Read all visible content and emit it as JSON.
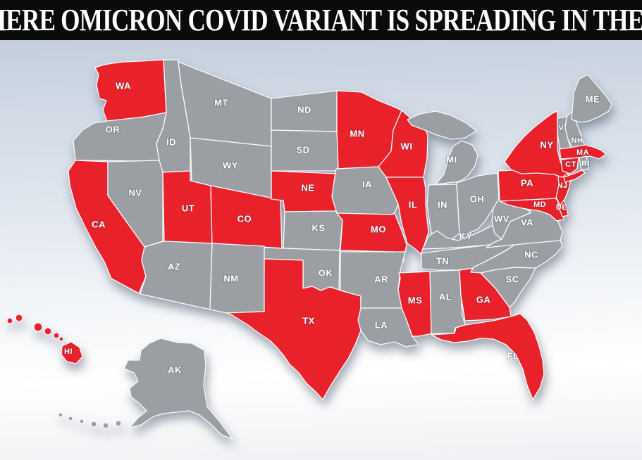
{
  "header": {
    "title": "WHERE OMICRON COVID VARIANT IS SPREADING IN THE US",
    "background": "#0b0b0c",
    "text_color": "#ffffff"
  },
  "map": {
    "colors": {
      "spreading": "#e8212a",
      "not_spreading": "#9b9ea3",
      "border": "#fafbfc",
      "label": "#ffffff"
    },
    "states": [
      {
        "id": "wa",
        "abbr": "WA",
        "spreading": true
      },
      {
        "id": "or",
        "abbr": "OR",
        "spreading": false
      },
      {
        "id": "ca",
        "abbr": "CA",
        "spreading": true
      },
      {
        "id": "nv",
        "abbr": "NV",
        "spreading": false
      },
      {
        "id": "id",
        "abbr": "ID",
        "spreading": false
      },
      {
        "id": "mt",
        "abbr": "MT",
        "spreading": false
      },
      {
        "id": "wy",
        "abbr": "WY",
        "spreading": false
      },
      {
        "id": "ut",
        "abbr": "UT",
        "spreading": true
      },
      {
        "id": "co",
        "abbr": "CO",
        "spreading": true
      },
      {
        "id": "az",
        "abbr": "AZ",
        "spreading": false
      },
      {
        "id": "nm",
        "abbr": "NM",
        "spreading": false
      },
      {
        "id": "nd",
        "abbr": "ND",
        "spreading": false
      },
      {
        "id": "sd",
        "abbr": "SD",
        "spreading": false
      },
      {
        "id": "ne",
        "abbr": "NE",
        "spreading": true
      },
      {
        "id": "ks",
        "abbr": "KS",
        "spreading": false
      },
      {
        "id": "ok",
        "abbr": "OK",
        "spreading": false
      },
      {
        "id": "tx",
        "abbr": "TX",
        "spreading": true
      },
      {
        "id": "mn",
        "abbr": "MN",
        "spreading": true
      },
      {
        "id": "ia",
        "abbr": "IA",
        "spreading": false
      },
      {
        "id": "mo",
        "abbr": "MO",
        "spreading": true
      },
      {
        "id": "ar",
        "abbr": "AR",
        "spreading": false
      },
      {
        "id": "la",
        "abbr": "LA",
        "spreading": false
      },
      {
        "id": "wi",
        "abbr": "WI",
        "spreading": true
      },
      {
        "id": "il",
        "abbr": "IL",
        "spreading": true
      },
      {
        "id": "in",
        "abbr": "IN",
        "spreading": false
      },
      {
        "id": "oh",
        "abbr": "OH",
        "spreading": false
      },
      {
        "id": "mi",
        "abbr": "MI",
        "spreading": false
      },
      {
        "id": "ky",
        "abbr": "KY",
        "spreading": false
      },
      {
        "id": "tn",
        "abbr": "TN",
        "spreading": false
      },
      {
        "id": "ms",
        "abbr": "MS",
        "spreading": true
      },
      {
        "id": "al",
        "abbr": "AL",
        "spreading": false
      },
      {
        "id": "ga",
        "abbr": "GA",
        "spreading": true
      },
      {
        "id": "fl",
        "abbr": "FL",
        "spreading": true
      },
      {
        "id": "sc",
        "abbr": "SC",
        "spreading": false
      },
      {
        "id": "nc",
        "abbr": "NC",
        "spreading": false
      },
      {
        "id": "va",
        "abbr": "VA",
        "spreading": false
      },
      {
        "id": "wv",
        "abbr": "WV",
        "spreading": false
      },
      {
        "id": "md",
        "abbr": "MD",
        "spreading": true
      },
      {
        "id": "de",
        "abbr": "DE",
        "spreading": true
      },
      {
        "id": "nj",
        "abbr": "NJ",
        "spreading": true
      },
      {
        "id": "pa",
        "abbr": "PA",
        "spreading": true
      },
      {
        "id": "ny",
        "abbr": "NY",
        "spreading": true
      },
      {
        "id": "vt",
        "abbr": "VT",
        "spreading": false
      },
      {
        "id": "nh",
        "abbr": "NH",
        "spreading": false
      },
      {
        "id": "ma",
        "abbr": "MA",
        "spreading": true
      },
      {
        "id": "ct",
        "abbr": "CT",
        "spreading": true
      },
      {
        "id": "ri",
        "abbr": "RI",
        "spreading": false
      },
      {
        "id": "me",
        "abbr": "ME",
        "spreading": false
      },
      {
        "id": "ak",
        "abbr": "AK",
        "spreading": false
      },
      {
        "id": "hi",
        "abbr": "HI",
        "spreading": true
      }
    ]
  }
}
